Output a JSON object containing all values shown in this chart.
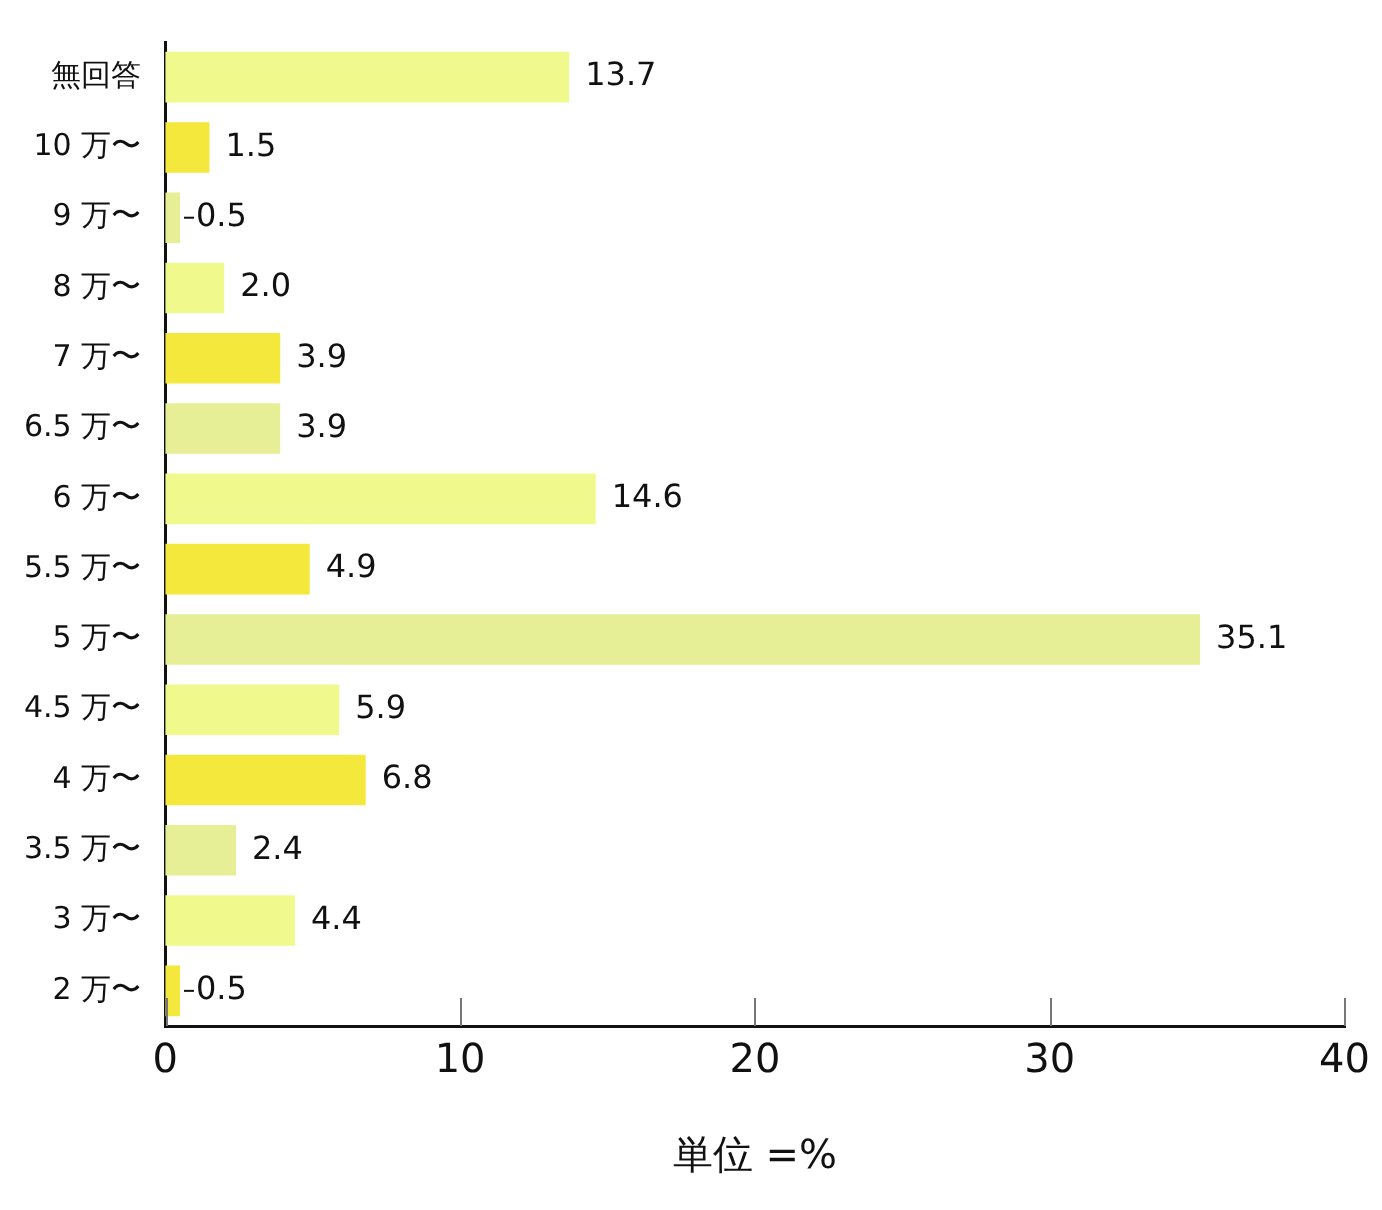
{
  "chart_data": {
    "type": "bar",
    "orientation": "horizontal",
    "xlabel": "単位 =%",
    "categories": [
      "無回答",
      "10 万〜",
      "9 万〜",
      "8 万〜",
      "7 万〜",
      "6.5 万〜",
      "6 万〜",
      "5.5 万〜",
      "5 万〜",
      "4.5 万〜",
      "4 万〜",
      "3.5 万〜",
      "3 万〜",
      "2 万〜"
    ],
    "values": [
      13.7,
      1.5,
      0.5,
      2.0,
      3.9,
      3.9,
      14.6,
      4.9,
      35.1,
      5.9,
      6.8,
      2.4,
      4.4,
      0.5
    ],
    "colors": [
      "#f0fa8c",
      "#f5e83c",
      "#e6ef96",
      "#f0fa8c",
      "#f5e83c",
      "#e6ef96",
      "#f0fa8c",
      "#f5e83c",
      "#e6ef96",
      "#f0fa8c",
      "#f5e83c",
      "#e6ef96",
      "#f0fa8c",
      "#f5e83c"
    ],
    "value_labels": [
      "13.7",
      "1.5",
      "0.5",
      "2.0",
      "3.9",
      "3.9",
      "14.6",
      "4.9",
      "35.1",
      "5.9",
      "6.8",
      "2.4",
      "4.4",
      "0.5"
    ],
    "xlim": [
      0,
      40
    ],
    "xticks": [
      0,
      10,
      20,
      30,
      40
    ],
    "grid": false,
    "legend": false
  }
}
